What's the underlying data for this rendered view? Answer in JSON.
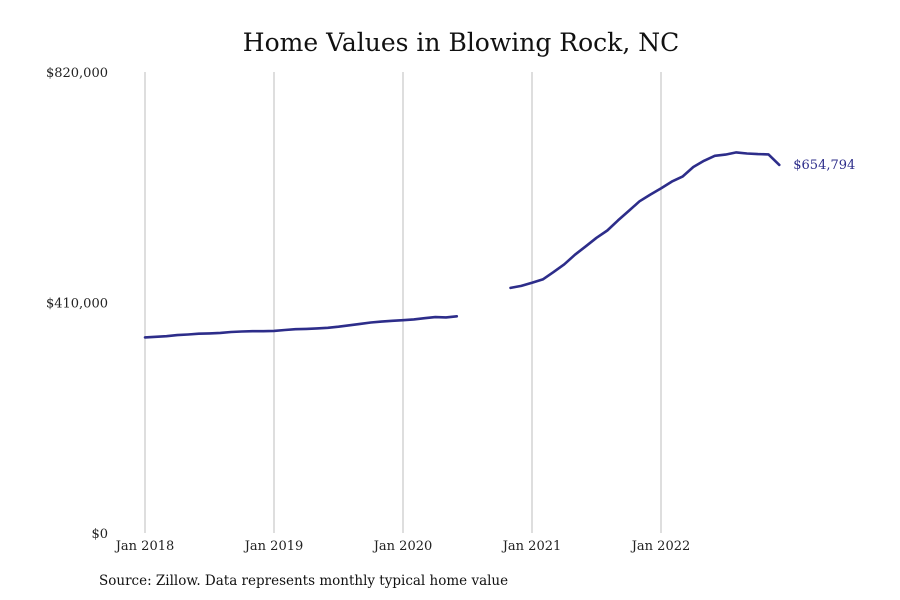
{
  "chart_data": {
    "type": "line",
    "title": "Home Values in Blowing Rock, NC",
    "source": "Source: Zillow. Data represents monthly typical home value",
    "xlabel": "",
    "ylabel": "",
    "ylim": [
      0,
      820000
    ],
    "y_ticks": [
      {
        "value": 0,
        "label": "$0"
      },
      {
        "value": 410000,
        "label": "$410,000"
      },
      {
        "value": 820000,
        "label": "$820,000"
      }
    ],
    "x_ticks": [
      {
        "date": "2018-01",
        "label": "Jan 2018"
      },
      {
        "date": "2019-01",
        "label": "Jan 2019"
      },
      {
        "date": "2020-01",
        "label": "Jan 2020"
      },
      {
        "date": "2021-01",
        "label": "Jan 2021"
      },
      {
        "date": "2022-01",
        "label": "Jan 2022"
      }
    ],
    "x_range": [
      "2018-01",
      "2023-01"
    ],
    "grid": "vertical",
    "line_color": "#2d2d8a",
    "end_label": "$654,794",
    "series": [
      {
        "segments": [
          {
            "x": [
              "2018-01",
              "2018-02",
              "2018-03",
              "2018-04",
              "2018-05",
              "2018-06",
              "2018-07",
              "2018-08",
              "2018-09",
              "2018-10",
              "2018-11",
              "2018-12",
              "2019-01",
              "2019-02",
              "2019-03",
              "2019-04",
              "2019-05",
              "2019-06",
              "2019-07",
              "2019-08",
              "2019-09",
              "2019-10",
              "2019-11",
              "2019-12",
              "2020-01",
              "2020-02",
              "2020-03",
              "2020-04",
              "2020-05",
              "2020-06"
            ],
            "y": [
              348000,
              349000,
              350000,
              352000,
              353000,
              354500,
              355000,
              356000,
              357500,
              358500,
              359000,
              359000,
              359500,
              361000,
              362500,
              363000,
              364000,
              365000,
              367000,
              369500,
              372000,
              374500,
              376000,
              377500,
              378500,
              380000,
              382000,
              384000,
              383500,
              385500
            ]
          },
          {
            "x": [
              "2020-11",
              "2020-12",
              "2021-01",
              "2021-02",
              "2021-03",
              "2021-04",
              "2021-05",
              "2021-06",
              "2021-07",
              "2021-08",
              "2021-09",
              "2021-10",
              "2021-11",
              "2021-12",
              "2022-01",
              "2022-02",
              "2022-03",
              "2022-04",
              "2022-05",
              "2022-06",
              "2022-07",
              "2022-08",
              "2022-09",
              "2022-10",
              "2022-11",
              "2022-12"
            ],
            "y": [
              436000,
              439500,
              445000,
              451000,
              464000,
              478000,
              495000,
              510000,
              525000,
              538000,
              556000,
              573000,
              590000,
              602000,
              613000,
              625000,
              634000,
              651000,
              662000,
              671000,
              673000,
              677000,
              675000,
              674000,
              673500,
              654794
            ]
          }
        ]
      }
    ]
  }
}
